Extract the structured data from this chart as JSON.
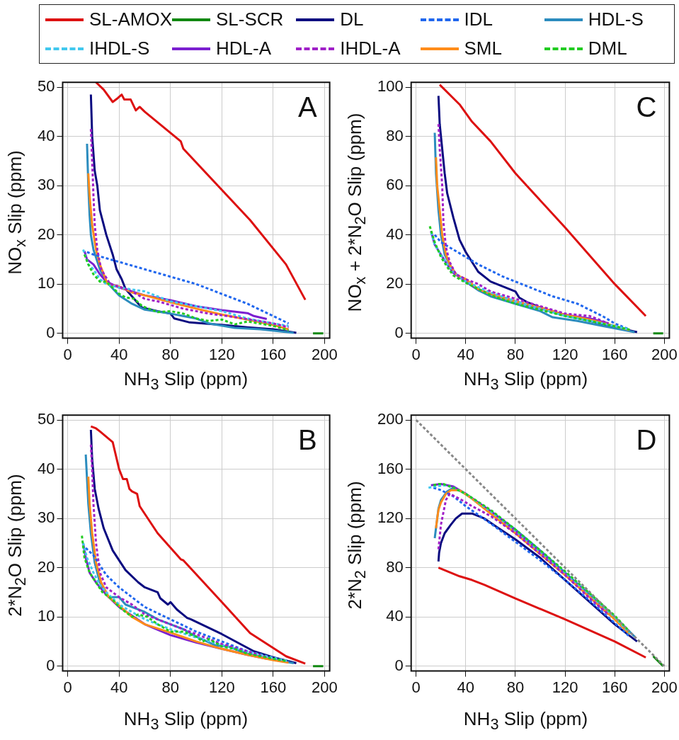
{
  "chart_data": [
    {
      "type": "line",
      "title": "A",
      "xlabel": "NH$_{3}$ Slip (ppm)",
      "ylabel": "NO$_{x}$ Slip (ppm)",
      "xlim": [
        -4,
        204
      ],
      "xticks": [
        0,
        40,
        80,
        120,
        160,
        200
      ],
      "ylim": [
        -1,
        51
      ],
      "yticks": [
        0,
        10,
        20,
        30,
        40,
        50
      ],
      "grid": true,
      "legend": "top",
      "series": [
        {
          "name": "SL-AMOX",
          "color": "#dd1111",
          "line_style": "solid",
          "x": [
            22,
            28,
            35,
            39,
            42,
            44,
            49,
            53,
            56,
            60,
            88,
            90,
            142,
            170,
            185
          ],
          "values": [
            51,
            49.5,
            47,
            47.8,
            48.5,
            47.5,
            47.5,
            45.3,
            46,
            45,
            39,
            37.5,
            23,
            14,
            6.8
          ]
        },
        {
          "name": "SL-SCR",
          "color": "#118811",
          "line_style": "solid",
          "x": [
            191,
            199
          ],
          "values": [
            0,
            0
          ]
        },
        {
          "name": "DL",
          "color": "#0a0a80",
          "line_style": "solid",
          "x": [
            18,
            19,
            21,
            23,
            25,
            30,
            35,
            38,
            42,
            45,
            55,
            58,
            70,
            80,
            83,
            95,
            120,
            140,
            160,
            178
          ],
          "values": [
            48.5,
            40,
            33,
            30,
            25,
            20,
            16,
            13,
            11,
            9,
            6,
            5.2,
            4.5,
            4,
            3,
            2.2,
            1.7,
            1.2,
            0.8,
            0.1
          ]
        },
        {
          "name": "IDL",
          "color": "#1f66ee",
          "line_style": "dashed",
          "x": [
            15,
            20,
            40,
            60,
            80,
            100,
            120,
            140,
            160,
            172
          ],
          "values": [
            16.5,
            16,
            14.5,
            13,
            11.5,
            10,
            8,
            6,
            3.5,
            2
          ]
        },
        {
          "name": "HDL-S",
          "color": "#2b8cbe",
          "line_style": "solid",
          "x": [
            15,
            16,
            17,
            18,
            20,
            25,
            30,
            40,
            50,
            60,
            80,
            100,
            110,
            130,
            150,
            176
          ],
          "values": [
            38.5,
            30,
            24,
            20,
            17,
            13,
            10.5,
            7.7,
            6,
            4.8,
            4,
            3,
            2,
            1.1,
            0.8,
            0.1
          ]
        },
        {
          "name": "IHDL-S",
          "color": "#41c8ee",
          "line_style": "dashed",
          "x": [
            12,
            16,
            20,
            25,
            30,
            40,
            60,
            80,
            100,
            120,
            140,
            160,
            172
          ],
          "values": [
            17,
            14,
            13,
            11,
            10,
            9.3,
            8.5,
            6.5,
            5.5,
            4.5,
            3,
            2,
            1.5
          ]
        },
        {
          "name": "HDL-A",
          "color": "#7b1fd0",
          "line_style": "solid",
          "x": [
            13,
            15,
            20,
            25,
            30,
            40,
            50,
            60,
            80,
            100,
            120,
            140,
            145,
            155
          ],
          "values": [
            16.7,
            15,
            14,
            12,
            10.5,
            9.3,
            8.5,
            7.7,
            6.7,
            5.5,
            4.7,
            4.1,
            3.5,
            2.9
          ]
        },
        {
          "name": "IHDL-A",
          "color": "#a020c8",
          "line_style": "dashed",
          "x": [
            18,
            19,
            20,
            21,
            23,
            26,
            33,
            40,
            50,
            60,
            70,
            90,
            110,
            130,
            160,
            172
          ],
          "values": [
            41.5,
            35,
            28,
            22,
            17,
            13,
            10,
            9.5,
            8.5,
            7,
            6.5,
            5,
            4,
            3.3,
            2,
            1.2
          ]
        },
        {
          "name": "SML",
          "color": "#ff8c1a",
          "line_style": "solid",
          "x": [
            16,
            17,
            19,
            22,
            25,
            31,
            40,
            50,
            60,
            80,
            100,
            120,
            140,
            160,
            172
          ],
          "values": [
            32.5,
            28,
            22,
            17,
            14,
            10,
            9.5,
            8.3,
            7.7,
            6.3,
            5,
            3.8,
            2.8,
            1.7,
            0.8
          ]
        },
        {
          "name": "DML",
          "color": "#22cc22",
          "line_style": "dashed",
          "x": [
            13,
            16,
            20,
            25,
            30,
            40,
            45,
            52,
            58,
            70,
            80,
            90,
            100,
            110,
            120,
            130,
            140,
            160,
            172
          ],
          "values": [
            16,
            14,
            12,
            10.5,
            10.5,
            8,
            7.3,
            7,
            5.5,
            4.3,
            4.5,
            4,
            3,
            2.5,
            2.8,
            1.8,
            2.4,
            1.5,
            0.6
          ]
        }
      ]
    },
    {
      "type": "line",
      "title": "C",
      "xlabel": "NH$_{3}$ Slip (ppm)",
      "ylabel": "NO$_{x}$ + 2*N$_{2}$O Slip (ppm)",
      "xlim": [
        -4,
        204
      ],
      "xticks": [
        0,
        40,
        80,
        120,
        160,
        200
      ],
      "ylim": [
        -2,
        102
      ],
      "yticks": [
        0,
        20,
        40,
        60,
        80,
        100
      ],
      "grid": true,
      "series": [
        {
          "color": "#dd1111",
          "line_style": "solid",
          "x": [
            19,
            35,
            45,
            60,
            80,
            120,
            160,
            185
          ],
          "values": [
            101,
            93,
            86,
            78,
            65,
            43,
            20,
            7
          ]
        },
        {
          "color": "#118811",
          "line_style": "solid",
          "x": [
            191,
            199
          ],
          "values": [
            0,
            0
          ]
        },
        {
          "color": "#0a0a80",
          "line_style": "solid",
          "x": [
            18,
            19,
            21,
            23,
            25,
            30,
            35,
            40,
            50,
            60,
            70,
            80,
            83,
            90,
            100,
            120,
            140,
            160,
            178
          ],
          "values": [
            96.5,
            85,
            75,
            65,
            57,
            47,
            38,
            33,
            25,
            21,
            19,
            17,
            14.5,
            12.5,
            10.5,
            7.5,
            5,
            2.5,
            0.5
          ]
        },
        {
          "color": "#1f66ee",
          "line_style": "dashed",
          "x": [
            15,
            20,
            30,
            50,
            70,
            90,
            110,
            130,
            150,
            160,
            172
          ],
          "values": [
            40,
            37,
            34,
            28,
            23,
            19,
            15,
            12,
            7,
            4,
            1.5
          ]
        },
        {
          "color": "#2b8cbe",
          "line_style": "solid",
          "x": [
            15,
            16,
            18,
            20,
            23,
            27,
            32,
            40,
            50,
            60,
            80,
            100,
            110,
            130,
            150,
            176
          ],
          "values": [
            81.5,
            65,
            50,
            40,
            32,
            28,
            24,
            21,
            17.5,
            15,
            12,
            9,
            6.5,
            5,
            3,
            0.5
          ]
        },
        {
          "color": "#41c8ee",
          "line_style": "dashed",
          "x": [
            12,
            15,
            20,
            25,
            30,
            40,
            58,
            80,
            100,
            120,
            140,
            160,
            172
          ],
          "values": [
            41,
            36,
            32,
            28,
            25,
            21,
            17,
            13,
            10,
            7,
            5,
            3,
            1.5
          ]
        },
        {
          "color": "#7b1fd0",
          "line_style": "solid",
          "x": [
            12,
            15,
            20,
            25,
            30,
            40,
            50,
            60,
            80,
            100,
            120,
            140,
            155
          ],
          "values": [
            41.5,
            36,
            32,
            28,
            24.5,
            21,
            18,
            16,
            13,
            10,
            7.5,
            6,
            4
          ]
        },
        {
          "color": "#a020c8",
          "line_style": "dashed",
          "x": [
            18,
            19,
            21,
            22,
            24,
            27,
            32,
            40,
            50,
            60,
            80,
            100,
            120,
            140,
            155
          ],
          "values": [
            85,
            75,
            60,
            45,
            35,
            29,
            24,
            22,
            20,
            17,
            14,
            11,
            8,
            7,
            4
          ]
        },
        {
          "color": "#ff8c1a",
          "line_style": "solid",
          "x": [
            16,
            17,
            19,
            21,
            24,
            28,
            33,
            40,
            50,
            60,
            80,
            100,
            120,
            140,
            160,
            172
          ],
          "values": [
            71.5,
            60,
            50,
            40,
            32,
            27,
            23.5,
            22,
            18,
            16,
            13,
            10.5,
            7.5,
            5.5,
            3,
            1.3
          ]
        },
        {
          "color": "#22cc22",
          "line_style": "dashed",
          "x": [
            11,
            15,
            20,
            25,
            30,
            40,
            50,
            60,
            80,
            100,
            120,
            140,
            160,
            172
          ],
          "values": [
            43.5,
            37,
            31,
            27,
            23.5,
            20.5,
            18,
            15.5,
            12,
            9.5,
            7,
            5,
            2.8,
            1.5
          ]
        }
      ]
    },
    {
      "type": "line",
      "title": "B",
      "xlabel": "NH$_{3}$ Slip (ppm)",
      "ylabel": "2*N$_{2}$O Slip (ppm)",
      "xlim": [
        -4,
        204
      ],
      "xticks": [
        0,
        40,
        80,
        120,
        160,
        200
      ],
      "ylim": [
        -1,
        51
      ],
      "yticks": [
        0,
        10,
        20,
        30,
        40,
        50
      ],
      "grid": true,
      "series": [
        {
          "color": "#dd1111",
          "line_style": "solid",
          "x": [
            18,
            22,
            25,
            35,
            40,
            43,
            46,
            48,
            50,
            54,
            56,
            70,
            88,
            90,
            120,
            142,
            170,
            185
          ],
          "values": [
            48.7,
            48.3,
            47.7,
            45.5,
            40,
            38,
            38,
            36,
            35.5,
            35,
            32.5,
            27,
            21.7,
            21.5,
            13,
            6.7,
            2,
            0.5
          ]
        },
        {
          "color": "#118811",
          "line_style": "solid",
          "x": [
            191,
            199
          ],
          "values": [
            0,
            0
          ]
        },
        {
          "color": "#0a0a80",
          "line_style": "solid",
          "x": [
            18,
            19,
            21,
            24,
            28,
            35,
            45,
            55,
            60,
            70,
            72,
            78,
            80,
            85,
            93,
            96,
            120,
            145,
            160,
            178
          ],
          "values": [
            48,
            42,
            36,
            32,
            28,
            23.5,
            19.5,
            17,
            16,
            15,
            13.8,
            12.5,
            13,
            11.5,
            9.8,
            9.5,
            6.5,
            3,
            1.8,
            0.6
          ]
        },
        {
          "color": "#1f66ee",
          "line_style": "dashed",
          "x": [
            14,
            20,
            30,
            40,
            50,
            60,
            80,
            100,
            120,
            140,
            160,
            172
          ],
          "values": [
            24,
            22.5,
            18.5,
            16,
            14,
            12,
            9.5,
            7,
            5,
            3,
            1.5,
            1
          ]
        },
        {
          "color": "#2b8cbe",
          "line_style": "solid",
          "x": [
            14,
            15,
            16,
            18,
            21,
            25,
            32,
            40,
            45,
            60,
            70,
            80,
            90,
            100,
            115,
            125,
            140,
            160,
            176
          ],
          "values": [
            43,
            38,
            33,
            27,
            21,
            17,
            14,
            14,
            12.5,
            11,
            9.5,
            8.5,
            7.5,
            6,
            4.2,
            4,
            2.5,
            1.3,
            0.6
          ]
        },
        {
          "color": "#41c8ee",
          "line_style": "dashed",
          "x": [
            12,
            15,
            20,
            25,
            30,
            40,
            60,
            80,
            100,
            120,
            140,
            160,
            172
          ],
          "values": [
            25,
            22,
            19,
            16.5,
            15,
            12.5,
            9.5,
            7.5,
            5.8,
            4.3,
            3,
            1.7,
            1
          ]
        },
        {
          "color": "#7b1fd0",
          "line_style": "solid",
          "x": [
            12,
            14,
            17,
            22,
            30,
            40,
            60,
            80,
            100,
            120,
            140,
            155
          ],
          "values": [
            25,
            22,
            19,
            17,
            14.5,
            12,
            8.5,
            6.3,
            4.8,
            3.5,
            2.3,
            1.5
          ]
        },
        {
          "color": "#a020c8",
          "line_style": "dashed",
          "x": [
            18,
            19,
            20,
            22,
            25,
            30,
            40,
            50,
            60,
            70,
            80,
            100,
            120,
            140,
            155
          ],
          "values": [
            45,
            40,
            33,
            25,
            19,
            16,
            14,
            12.5,
            10.5,
            9.5,
            8.5,
            6.5,
            4.5,
            3,
            1.8
          ]
        },
        {
          "color": "#ff8c1a",
          "line_style": "solid",
          "x": [
            16,
            17,
            19,
            22,
            26,
            32,
            40,
            50,
            60,
            80,
            100,
            120,
            140,
            160,
            172
          ],
          "values": [
            38.5,
            33,
            27,
            21,
            17,
            14,
            12.3,
            10,
            8.5,
            6.8,
            5,
            3.5,
            2.3,
            1.2,
            0.7
          ]
        },
        {
          "color": "#22cc22",
          "line_style": "dashed",
          "x": [
            11,
            13,
            17,
            22,
            27,
            35,
            40,
            50,
            55,
            62,
            70,
            80,
            90,
            100,
            105,
            110,
            120,
            130,
            140,
            160,
            171
          ],
          "values": [
            26.5,
            22,
            19,
            17,
            15,
            13.5,
            12,
            10,
            10.5,
            10,
            8.5,
            7,
            7,
            6,
            5,
            5.5,
            4,
            3.5,
            2.5,
            1.5,
            1
          ]
        }
      ]
    },
    {
      "type": "line",
      "title": "D",
      "xlabel": "NH$_{3}$ Slip (ppm)",
      "ylabel": "2*N$_{2}$ Slip (ppm)",
      "xlim": [
        -4,
        204
      ],
      "xticks": [
        0,
        40,
        80,
        120,
        160,
        200
      ],
      "ylim": [
        -4,
        204
      ],
      "yticks": [
        0,
        40,
        80,
        120,
        160,
        200
      ],
      "grid": true,
      "series": [
        {
          "color": "#dd1111",
          "line_style": "solid",
          "x": [
            18,
            35,
            45,
            55,
            80,
            120,
            160,
            185
          ],
          "values": [
            80,
            73,
            70,
            66,
            55,
            38,
            20,
            7
          ]
        },
        {
          "color": "#118811",
          "line_style": "solid",
          "x": [
            191,
            199
          ],
          "values": [
            8,
            0
          ]
        },
        {
          "color": "#0a0a80",
          "line_style": "solid",
          "x": [
            18,
            18.5,
            20,
            23,
            28,
            32,
            37,
            45,
            55,
            65,
            80,
            100,
            120,
            140,
            160,
            178
          ],
          "values": [
            85,
            92,
            100,
            108,
            115,
            120,
            124,
            124,
            120,
            113,
            103,
            88,
            70,
            52,
            34,
            20
          ]
        },
        {
          "color": "#1f66ee",
          "line_style": "dashed",
          "x": [
            14,
            20,
            30,
            40,
            60,
            80,
            100,
            120,
            140,
            160,
            172
          ],
          "values": [
            145,
            143,
            138,
            130,
            116,
            101,
            86,
            70,
            53,
            35,
            24
          ]
        },
        {
          "color": "#2b8cbe",
          "line_style": "solid",
          "x": [
            15,
            16,
            17,
            18,
            20,
            25,
            30,
            40,
            60,
            80,
            100,
            120,
            140,
            160,
            176
          ],
          "values": [
            104,
            112,
            120,
            128,
            135,
            142,
            145,
            140,
            126,
            111,
            94,
            76,
            58,
            40,
            24
          ]
        },
        {
          "color": "#41c8ee",
          "line_style": "dashed",
          "x": [
            10,
            16,
            24,
            30,
            40,
            60,
            80,
            100,
            120,
            140,
            160,
            172
          ],
          "values": [
            145,
            146,
            147,
            145,
            140,
            126,
            110,
            93,
            76,
            58,
            40,
            27
          ]
        },
        {
          "color": "#7b1fd0",
          "line_style": "solid",
          "x": [
            12,
            20,
            30,
            40,
            60,
            80,
            100,
            120,
            140,
            155
          ],
          "values": [
            147,
            148,
            146,
            140,
            126,
            110,
            93,
            75,
            56,
            42
          ]
        },
        {
          "color": "#a020c8",
          "line_style": "dashed",
          "x": [
            18,
            19,
            20,
            22,
            24,
            27,
            35,
            45,
            60,
            80,
            100,
            120,
            140,
            155
          ],
          "values": [
            95,
            105,
            115,
            125,
            135,
            140,
            136,
            130,
            122,
            108,
            91,
            74,
            55,
            42
          ]
        },
        {
          "color": "#ff8c1a",
          "line_style": "solid",
          "x": [
            16,
            17,
            18,
            20,
            24,
            28,
            35,
            45,
            60,
            80,
            100,
            120,
            140,
            160,
            172
          ],
          "values": [
            112,
            120,
            127,
            133,
            140,
            143,
            143,
            136,
            124,
            108,
            91,
            74,
            56,
            38,
            26
          ]
        },
        {
          "color": "#22cc22",
          "line_style": "dashed",
          "x": [
            14,
            18,
            22,
            30,
            40,
            60,
            80,
            100,
            120,
            140,
            160,
            172
          ],
          "values": [
            147,
            148,
            148,
            145,
            140,
            127,
            111,
            94,
            77,
            59,
            41,
            28
          ]
        },
        {
          "color": "#888888",
          "line_style": "dashed",
          "x": [
            0,
            200
          ],
          "values": [
            200,
            0
          ]
        }
      ]
    }
  ]
}
